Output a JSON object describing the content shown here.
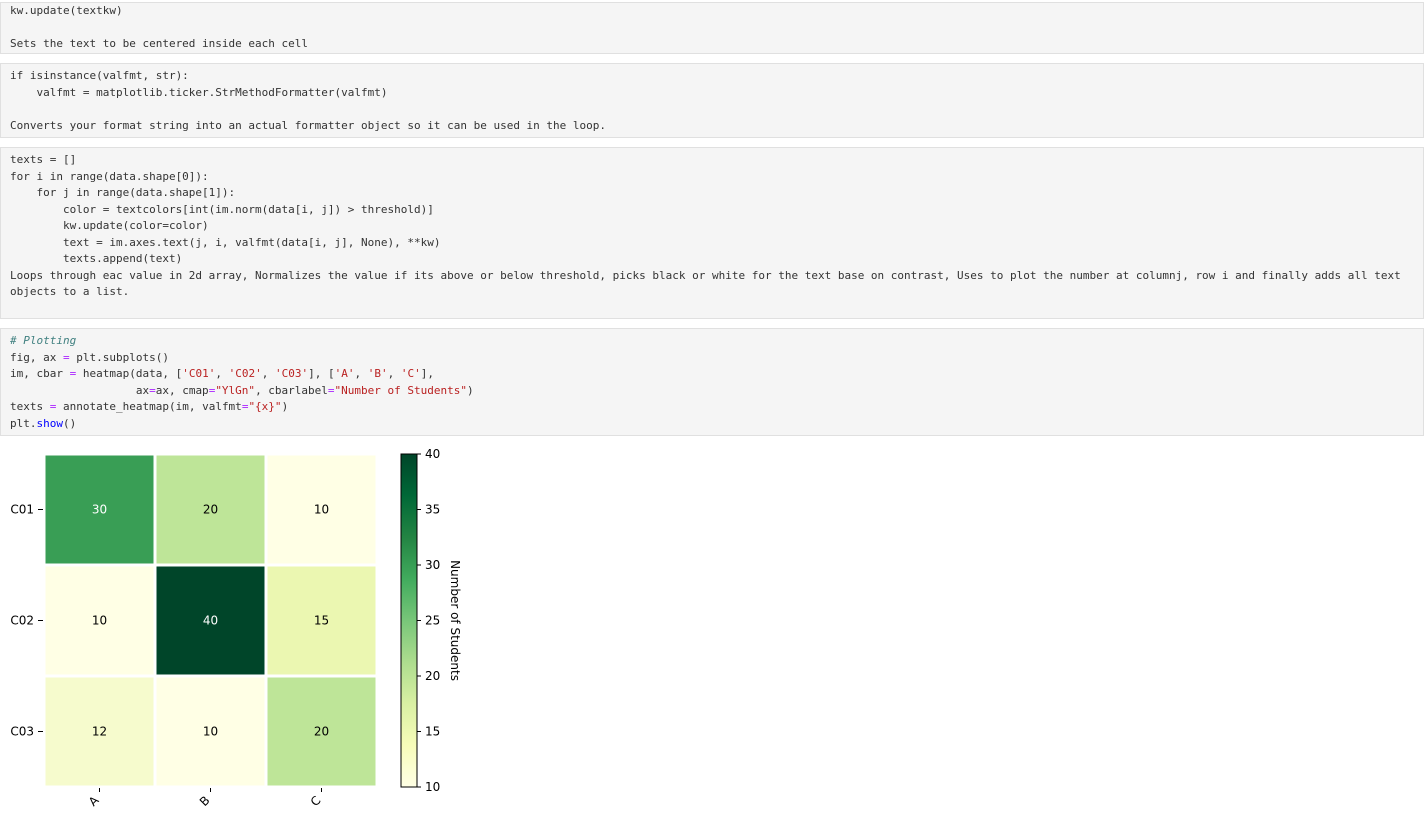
{
  "cells": [
    {
      "kind": "markdown",
      "lines": [
        "kw.update(textkw)",
        "",
        "Sets the text to be centered inside each cell"
      ]
    },
    {
      "kind": "markdown",
      "lines": [
        "if isinstance(valfmt, str):",
        "    valfmt = matplotlib.ticker.StrMethodFormatter(valfmt)",
        "",
        "Converts your format string into an actual formatter object so it can be used in the loop."
      ]
    },
    {
      "kind": "markdown",
      "lines": [
        "texts = []",
        "for i in range(data.shape[0]):",
        "    for j in range(data.shape[1]):",
        "        color = textcolors[int(im.norm(data[i, j]) > threshold)]",
        "        kw.update(color=color)",
        "        text = im.axes.text(j, i, valfmt(data[i, j], None), **kw)",
        "        texts.append(text)",
        ""
      ]
    },
    {
      "kind": "markdown",
      "paragraph": "Loops through eac value in 2d array, Normalizes the value if its above or below threshold, picks black or white for the text base on contrast, Uses to plot the number at columnj, row i and finally adds all text objects to a list."
    },
    {
      "kind": "code",
      "comment": "# Plotting",
      "line2": "fig, ax = plt.subplots()",
      "line3": "im, cbar = heatmap(data, ['C01', 'C02', 'C03'], ['A', 'B', 'C'],",
      "line4": "                   ax=ax, cmap=\"YlGn\", cbarlabel=\"Number of Students\")",
      "line5": "texts = annotate_heatmap(im, valfmt=\"{x}\")",
      "line6": "plt.show()"
    }
  ],
  "chart_data": {
    "type": "heatmap",
    "rows": [
      "C01",
      "C02",
      "C03"
    ],
    "cols": [
      "A",
      "B",
      "C"
    ],
    "values": [
      [
        30,
        20,
        10
      ],
      [
        10,
        40,
        15
      ],
      [
        12,
        10,
        20
      ]
    ],
    "cmap": "YlGn",
    "colorbar": {
      "label": "Number of Students",
      "range": [
        10,
        40
      ],
      "ticks": [
        10,
        15,
        20,
        25,
        30,
        35,
        40
      ]
    },
    "text_colors": {
      "dark": "#000000",
      "light": "#ffffff"
    },
    "cell_colors": [
      [
        "#399e55",
        "#bee598",
        "#ffffe5"
      ],
      [
        "#ffffe5",
        "#004529",
        "#ebf7b1"
      ],
      [
        "#f6fbcd",
        "#ffffe5",
        "#bee598"
      ]
    ]
  }
}
